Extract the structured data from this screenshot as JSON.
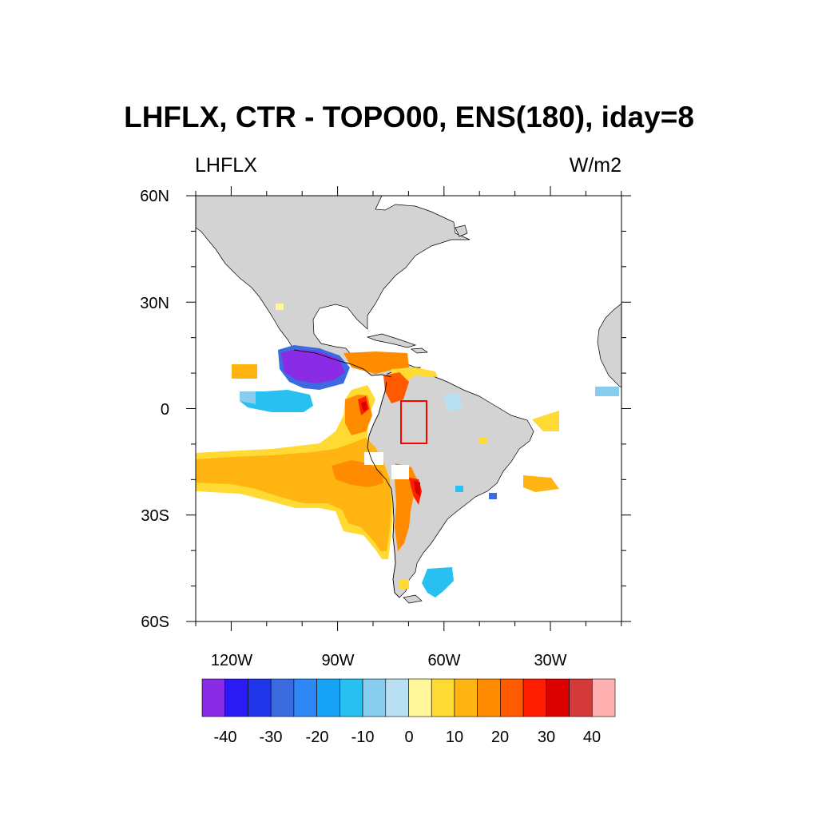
{
  "title": "LHFLX, CTR - TOPO00, ENS(180), iday=8",
  "left_label": "LHFLX",
  "right_label": "W/m2",
  "lat_axis": {
    "labels": [
      "60N",
      "30N",
      "0",
      "30S",
      "60S"
    ]
  },
  "lon_axis": {
    "labels": [
      "120W",
      "90W",
      "60W",
      "30W"
    ]
  },
  "colorbar": {
    "colors": [
      "#8a2be6",
      "#2a1bf5",
      "#2036e8",
      "#3c6be0",
      "#2f86f5",
      "#17a3f5",
      "#27c0f0",
      "#88ccee",
      "#b8e0f2",
      "#fff799",
      "#ffda33",
      "#ffb412",
      "#ff8c00",
      "#ff5a00",
      "#ff1e00",
      "#dc0000",
      "#d43a3a",
      "#ffb0b0"
    ],
    "tick_labels": [
      "-40",
      "-30",
      "-20",
      "-10",
      "0",
      "10",
      "20",
      "30",
      "40"
    ]
  },
  "map_colors": {
    "land": "#d3d3d3",
    "ocean": "#ffffff",
    "box": "#ff0000"
  },
  "chart_data": {
    "type": "heatmap",
    "variable": "LHFLX",
    "units": "W/m2",
    "lat_range": [
      -60,
      60
    ],
    "lon_range": [
      -130,
      -7
    ],
    "levels": [
      -40,
      -35,
      -30,
      -25,
      -20,
      -15,
      -10,
      -5,
      0,
      5,
      10,
      15,
      20,
      25,
      30,
      35,
      40
    ],
    "highlight_box": {
      "lon": [
        -72,
        -65
      ],
      "lat": [
        -10,
        2
      ]
    }
  }
}
